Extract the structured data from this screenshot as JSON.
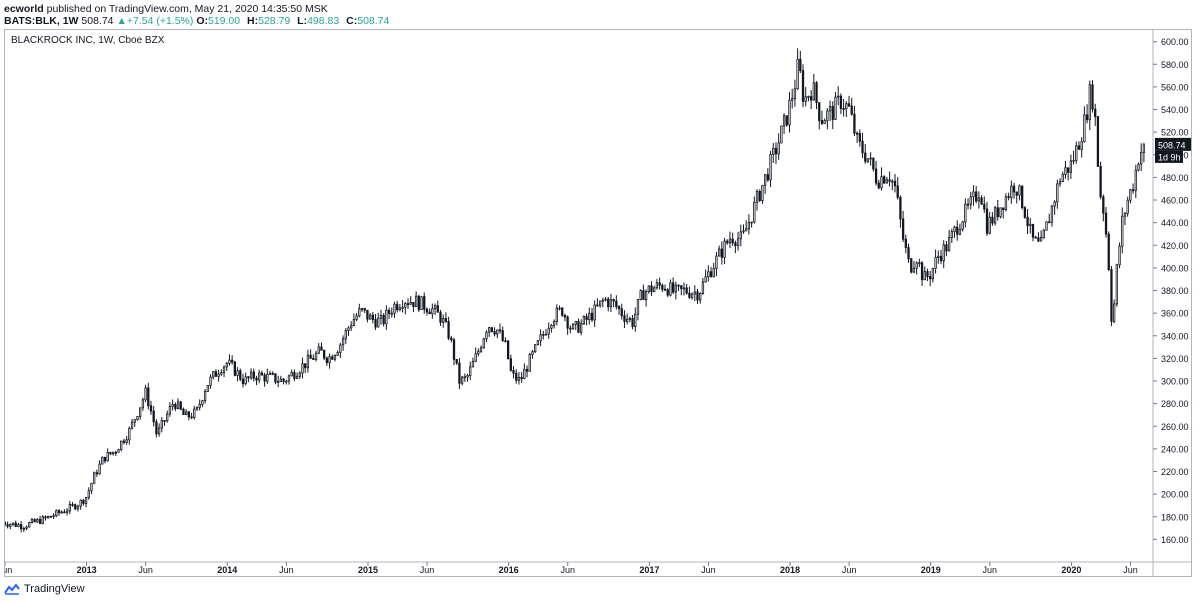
{
  "header": {
    "author": "ecworld",
    "published_text": "published on TradingView.com, May 21, 2020 14:35:50 MSK",
    "symbol": "BATS:BLK, 1W",
    "last": "508.74",
    "change": "+7.54 (+1.5%)",
    "o_label": "O:",
    "o": "519.00",
    "h_label": "H:",
    "h": "528.79",
    "l_label": "L:",
    "l": "498.83",
    "c_label": "C:",
    "c": "508.74"
  },
  "legend": "BLACKROCK INC, 1W, Cboe BZX",
  "price_tag": {
    "value": "508.74",
    "countdown": "1d 9h"
  },
  "footer": {
    "brand": "TradingView"
  },
  "colors": {
    "candle": "#131722",
    "axis_text": "#131722",
    "up": "#26a69a"
  },
  "chart_data": {
    "type": "candlestick",
    "title": "BLACKROCK INC, 1W, Cboe BZX",
    "interval": "1W",
    "ylim": [
      140,
      605
    ],
    "yticks": [
      160,
      180,
      200,
      220,
      240,
      260,
      280,
      300,
      320,
      340,
      360,
      380,
      400,
      420,
      440,
      460,
      480,
      500,
      520,
      540,
      560,
      580,
      600
    ],
    "ytick_labels": [
      "160.00",
      "180.00",
      "200.00",
      "220.00",
      "240.00",
      "260.00",
      "280.00",
      "300.00",
      "320.00",
      "340.00",
      "360.00",
      "380.00",
      "400.00",
      "420.00",
      "440.00",
      "460.00",
      "480.00",
      "500.00",
      "520.00",
      "540.00",
      "560.00",
      "580.00",
      "600.00"
    ],
    "xticks": [
      "Jun",
      "2013",
      "Jun",
      "2014",
      "Jun",
      "2015",
      "Jun",
      "2016",
      "Jun",
      "2017",
      "Jun",
      "2018",
      "Jun",
      "2019",
      "Jun",
      "2020",
      "Jun"
    ],
    "x_start": "2012.42",
    "x_end": "2020.58",
    "x_tick_positions": [
      2012.42,
      2013.0,
      2013.42,
      2014.0,
      2014.42,
      2015.0,
      2015.42,
      2016.0,
      2016.42,
      2017.0,
      2017.42,
      2018.0,
      2018.42,
      2019.0,
      2019.42,
      2020.0,
      2020.42
    ],
    "price_path": [
      [
        2012.4,
        175
      ],
      [
        2012.55,
        172
      ],
      [
        2012.7,
        178
      ],
      [
        2012.85,
        186
      ],
      [
        2012.95,
        192
      ],
      [
        2013.0,
        198
      ],
      [
        2013.05,
        215
      ],
      [
        2013.12,
        232
      ],
      [
        2013.2,
        238
      ],
      [
        2013.3,
        255
      ],
      [
        2013.38,
        278
      ],
      [
        2013.42,
        290
      ],
      [
        2013.47,
        268
      ],
      [
        2013.5,
        252
      ],
      [
        2013.58,
        272
      ],
      [
        2013.62,
        282
      ],
      [
        2013.7,
        268
      ],
      [
        2013.78,
        272
      ],
      [
        2013.85,
        296
      ],
      [
        2013.95,
        312
      ],
      [
        2014.0,
        316
      ],
      [
        2014.05,
        310
      ],
      [
        2014.12,
        300
      ],
      [
        2014.2,
        305
      ],
      [
        2014.3,
        303
      ],
      [
        2014.4,
        300
      ],
      [
        2014.5,
        310
      ],
      [
        2014.58,
        318
      ],
      [
        2014.66,
        326
      ],
      [
        2014.72,
        320
      ],
      [
        2014.8,
        332
      ],
      [
        2014.88,
        352
      ],
      [
        2014.95,
        362
      ],
      [
        2015.02,
        355
      ],
      [
        2015.1,
        352
      ],
      [
        2015.18,
        366
      ],
      [
        2015.25,
        372
      ],
      [
        2015.35,
        370
      ],
      [
        2015.45,
        364
      ],
      [
        2015.52,
        356
      ],
      [
        2015.58,
        340
      ],
      [
        2015.65,
        300
      ],
      [
        2015.7,
        302
      ],
      [
        2015.78,
        325
      ],
      [
        2015.85,
        350
      ],
      [
        2015.92,
        345
      ],
      [
        2015.98,
        330
      ],
      [
        2016.02,
        305
      ],
      [
        2016.08,
        300
      ],
      [
        2016.15,
        318
      ],
      [
        2016.22,
        335
      ],
      [
        2016.3,
        355
      ],
      [
        2016.38,
        363
      ],
      [
        2016.45,
        345
      ],
      [
        2016.52,
        350
      ],
      [
        2016.6,
        360
      ],
      [
        2016.68,
        372
      ],
      [
        2016.75,
        368
      ],
      [
        2016.82,
        358
      ],
      [
        2016.88,
        352
      ],
      [
        2016.95,
        378
      ],
      [
        2017.02,
        382
      ],
      [
        2017.1,
        385
      ],
      [
        2017.18,
        378
      ],
      [
        2017.25,
        380
      ],
      [
        2017.35,
        378
      ],
      [
        2017.42,
        395
      ],
      [
        2017.5,
        412
      ],
      [
        2017.58,
        428
      ],
      [
        2017.66,
        425
      ],
      [
        2017.72,
        445
      ],
      [
        2017.78,
        465
      ],
      [
        2017.85,
        488
      ],
      [
        2017.92,
        512
      ],
      [
        2017.98,
        535
      ],
      [
        2018.03,
        560
      ],
      [
        2018.06,
        580
      ],
      [
        2018.1,
        548
      ],
      [
        2018.16,
        560
      ],
      [
        2018.22,
        532
      ],
      [
        2018.3,
        538
      ],
      [
        2018.36,
        548
      ],
      [
        2018.42,
        540
      ],
      [
        2018.48,
        510
      ],
      [
        2018.55,
        498
      ],
      [
        2018.62,
        478
      ],
      [
        2018.7,
        484
      ],
      [
        2018.75,
        470
      ],
      [
        2018.8,
        428
      ],
      [
        2018.85,
        400
      ],
      [
        2018.9,
        410
      ],
      [
        2018.95,
        390
      ],
      [
        2019.0,
        395
      ],
      [
        2019.05,
        410
      ],
      [
        2019.12,
        420
      ],
      [
        2019.2,
        440
      ],
      [
        2019.28,
        455
      ],
      [
        2019.35,
        470
      ],
      [
        2019.4,
        438
      ],
      [
        2019.45,
        445
      ],
      [
        2019.52,
        460
      ],
      [
        2019.6,
        475
      ],
      [
        2019.66,
        455
      ],
      [
        2019.72,
        425
      ],
      [
        2019.78,
        418
      ],
      [
        2019.85,
        448
      ],
      [
        2019.92,
        480
      ],
      [
        2020.0,
        492
      ],
      [
        2020.05,
        510
      ],
      [
        2020.1,
        532
      ],
      [
        2020.14,
        560
      ],
      [
        2020.17,
        530
      ],
      [
        2020.2,
        470
      ],
      [
        2020.23,
        450
      ],
      [
        2020.26,
        415
      ],
      [
        2020.29,
        345
      ],
      [
        2020.32,
        395
      ],
      [
        2020.36,
        440
      ],
      [
        2020.4,
        460
      ],
      [
        2020.44,
        475
      ],
      [
        2020.48,
        500
      ],
      [
        2020.52,
        508.74
      ]
    ]
  }
}
